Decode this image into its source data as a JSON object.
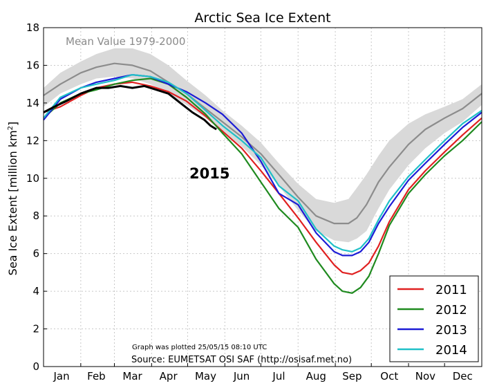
{
  "chart_data": {
    "type": "line",
    "title": "Arctic Sea Ice Extent",
    "ylabel": "Sea Ice Extent [million km",
    "ylabel_sup": "2",
    "ylabel_end": "]",
    "xlabel": "",
    "ylim": [
      0,
      18
    ],
    "yticks": [
      "0",
      "2",
      "4",
      "6",
      "8",
      "10",
      "12",
      "14",
      "16",
      "18"
    ],
    "xlim": [
      1,
      366
    ],
    "month_labels": [
      "Jan",
      "Feb",
      "Mar",
      "Apr",
      "May",
      "Jun",
      "Jul",
      "Aug",
      "Sep",
      "Oct",
      "Nov",
      "Dec"
    ],
    "month_label_days": [
      16,
      45,
      75,
      105,
      136,
      166,
      197,
      228,
      258,
      289,
      319,
      350
    ],
    "grid": true,
    "legend_position": "bottom-right",
    "annotations": {
      "mean_label": "Mean Value 1979-2000",
      "year_label": "2015",
      "plotted": "Graph was plotted 25/05/15 08:10 UTC",
      "source": "Source: EUMETSAT OSI SAF (http://osisaf.met.no)"
    },
    "band": {
      "x": [
        1,
        15,
        32,
        45,
        60,
        75,
        90,
        105,
        120,
        136,
        150,
        166,
        182,
        197,
        213,
        228,
        243,
        255,
        262,
        270,
        280,
        289,
        305,
        319,
        335,
        350,
        366
      ],
      "low": [
        13.8,
        14.5,
        15.0,
        15.3,
        15.4,
        15.3,
        15.0,
        14.5,
        13.9,
        13.2,
        12.5,
        11.7,
        10.7,
        9.6,
        8.3,
        7.2,
        6.7,
        6.6,
        6.8,
        7.2,
        8.4,
        9.4,
        10.7,
        11.6,
        12.4,
        13.0,
        13.9
      ],
      "high": [
        14.8,
        15.6,
        16.2,
        16.6,
        16.9,
        16.9,
        16.6,
        16.0,
        15.2,
        14.4,
        13.6,
        12.8,
        11.9,
        10.8,
        9.7,
        8.9,
        8.7,
        8.9,
        9.5,
        10.2,
        11.2,
        12.0,
        12.9,
        13.4,
        13.8,
        14.2,
        15.0
      ]
    },
    "series": [
      {
        "name": "Mean Value 1979-2000",
        "color": "#8c8c8c",
        "x": [
          1,
          15,
          32,
          45,
          60,
          75,
          90,
          105,
          120,
          136,
          150,
          166,
          182,
          197,
          213,
          228,
          243,
          255,
          262,
          270,
          280,
          289,
          305,
          319,
          335,
          350,
          366
        ],
        "values": [
          14.4,
          15.0,
          15.6,
          15.9,
          16.1,
          16.0,
          15.7,
          15.1,
          14.5,
          13.7,
          13.0,
          12.2,
          11.3,
          10.2,
          9.0,
          8.0,
          7.6,
          7.6,
          7.9,
          8.6,
          9.8,
          10.6,
          11.8,
          12.6,
          13.2,
          13.7,
          14.5
        ]
      },
      {
        "name": "2011",
        "color": "#e02020",
        "x": [
          1,
          15,
          32,
          45,
          60,
          75,
          90,
          105,
          120,
          136,
          150,
          166,
          182,
          197,
          213,
          228,
          243,
          250,
          258,
          265,
          272,
          280,
          289,
          305,
          319,
          335,
          350,
          366
        ],
        "values": [
          13.5,
          13.8,
          14.4,
          14.8,
          15.0,
          15.1,
          14.9,
          14.6,
          14.1,
          13.3,
          12.5,
          11.6,
          10.4,
          9.2,
          7.9,
          6.6,
          5.4,
          5.0,
          4.9,
          5.1,
          5.5,
          6.4,
          7.7,
          9.4,
          10.4,
          11.4,
          12.3,
          13.2
        ]
      },
      {
        "name": "2012",
        "color": "#1f8a1f",
        "x": [
          1,
          15,
          32,
          45,
          60,
          75,
          90,
          105,
          120,
          136,
          150,
          166,
          182,
          197,
          213,
          228,
          243,
          250,
          258,
          265,
          272,
          280,
          289,
          305,
          319,
          335,
          350,
          366
        ],
        "values": [
          13.2,
          14.0,
          14.5,
          14.7,
          15.0,
          15.2,
          15.3,
          15.0,
          14.3,
          13.4,
          12.4,
          11.3,
          9.8,
          8.4,
          7.4,
          5.7,
          4.4,
          4.0,
          3.9,
          4.2,
          4.8,
          6.0,
          7.5,
          9.2,
          10.2,
          11.2,
          12.0,
          13.0
        ]
      },
      {
        "name": "2013",
        "color": "#1c1cd6",
        "x": [
          1,
          15,
          32,
          45,
          60,
          75,
          90,
          105,
          120,
          136,
          150,
          166,
          182,
          197,
          213,
          228,
          243,
          250,
          258,
          265,
          272,
          280,
          289,
          305,
          319,
          335,
          350,
          366
        ],
        "values": [
          13.1,
          14.2,
          14.8,
          15.1,
          15.3,
          15.5,
          15.4,
          15.0,
          14.6,
          14.0,
          13.4,
          12.4,
          10.9,
          9.2,
          8.6,
          7.1,
          6.1,
          5.9,
          5.9,
          6.1,
          6.6,
          7.6,
          8.5,
          9.9,
          10.8,
          11.8,
          12.7,
          13.5
        ]
      },
      {
        "name": "2014",
        "color": "#20c0c8",
        "x": [
          1,
          15,
          32,
          45,
          60,
          75,
          90,
          105,
          120,
          136,
          150,
          166,
          182,
          197,
          213,
          228,
          243,
          250,
          258,
          265,
          272,
          280,
          289,
          305,
          319,
          335,
          350,
          366
        ],
        "values": [
          13.2,
          14.3,
          14.8,
          15.0,
          15.2,
          15.5,
          15.4,
          15.1,
          14.5,
          13.6,
          12.8,
          12.0,
          11.1,
          9.6,
          8.8,
          7.3,
          6.4,
          6.2,
          6.1,
          6.3,
          6.8,
          7.8,
          8.8,
          10.1,
          11.0,
          12.0,
          12.9,
          13.6
        ]
      },
      {
        "name": "2015",
        "color": "#000000",
        "x": [
          1,
          10,
          20,
          32,
          45,
          55,
          65,
          75,
          85,
          95,
          105,
          115,
          125,
          135,
          140,
          145
        ],
        "values": [
          13.5,
          13.8,
          14.1,
          14.5,
          14.8,
          14.8,
          14.9,
          14.8,
          14.9,
          14.7,
          14.5,
          14.0,
          13.5,
          13.1,
          12.8,
          12.6
        ]
      }
    ],
    "legend_entries": [
      "2011",
      "2012",
      "2013",
      "2014"
    ]
  }
}
